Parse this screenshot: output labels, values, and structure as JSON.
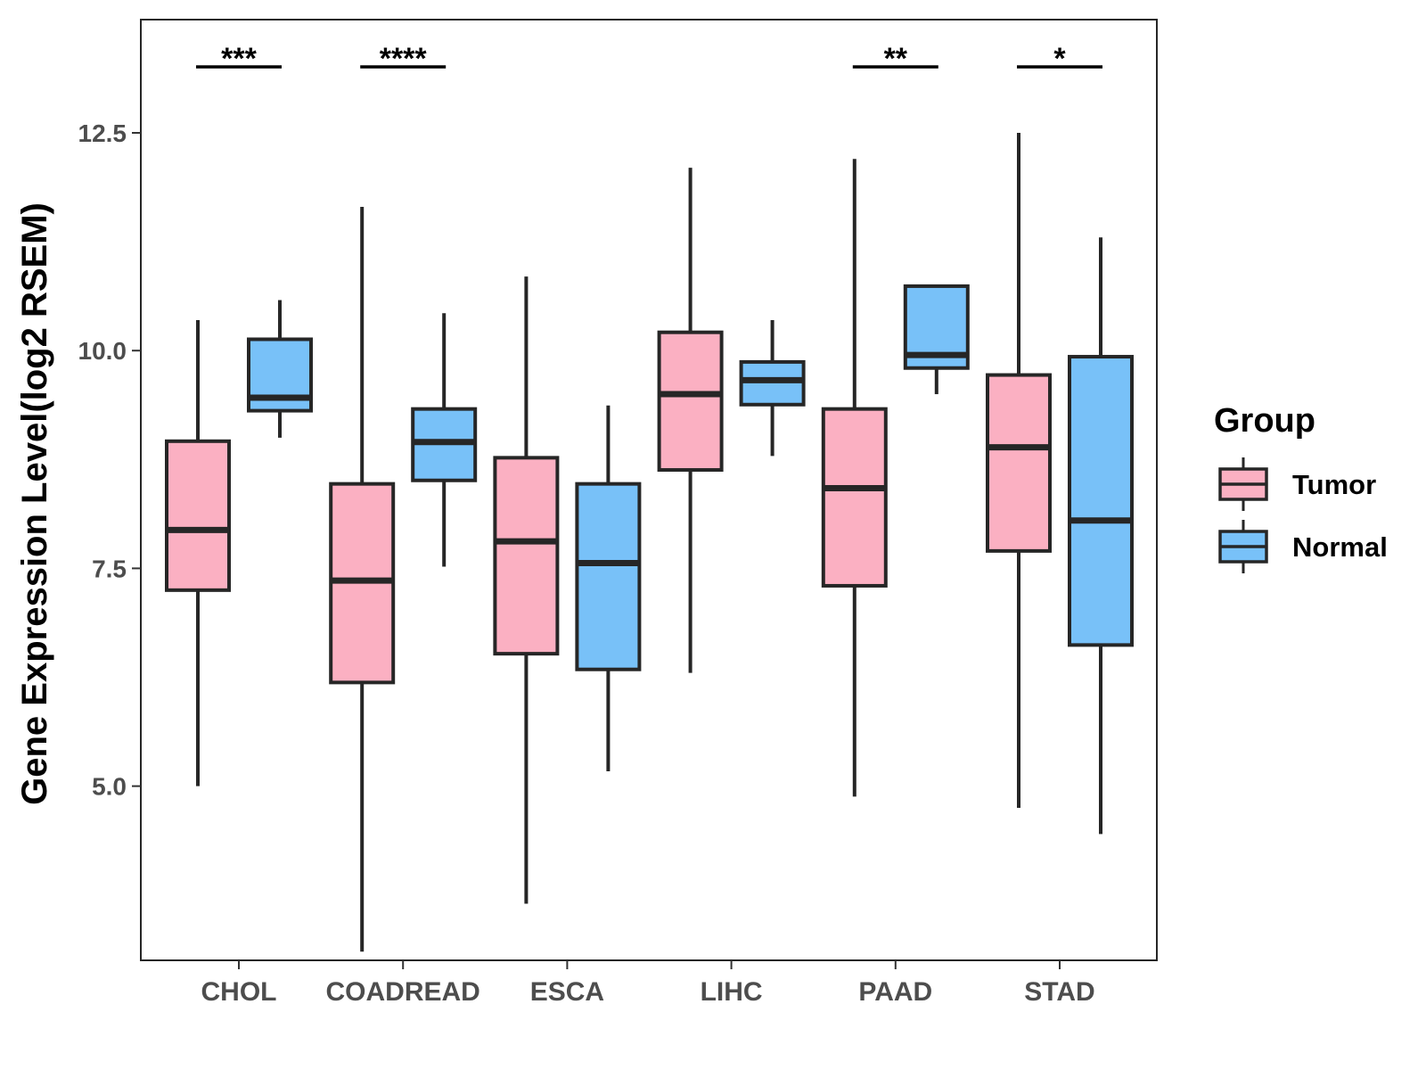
{
  "chart_data": {
    "type": "boxplot",
    "title": "",
    "xlabel": "",
    "ylabel": "Gene Expression Level(log2 RSEM)",
    "ylim": [
      3.0,
      13.8
    ],
    "yticks": [
      5.0,
      7.5,
      10.0,
      12.5
    ],
    "ytick_labels": [
      "5.0",
      "7.5",
      "10.0",
      "12.5"
    ],
    "categories": [
      "CHOL",
      "COADREAD",
      "ESCA",
      "LIHC",
      "PAAD",
      "STAD"
    ],
    "legend": {
      "title": "Group",
      "position": "right",
      "entries": [
        "Tumor",
        "Normal"
      ]
    },
    "colors": {
      "Tumor": "#FBB0C2",
      "Normal": "#78C1F8",
      "outline": "#262626"
    },
    "series": [
      {
        "name": "Tumor",
        "boxes": [
          {
            "min": 5.0,
            "q1": 7.25,
            "median": 7.94,
            "q3": 8.96,
            "max": 10.35
          },
          {
            "min": 3.1,
            "q1": 6.19,
            "median": 7.36,
            "q3": 8.47,
            "max": 11.65
          },
          {
            "min": 3.65,
            "q1": 6.52,
            "median": 7.81,
            "q3": 8.77,
            "max": 10.85
          },
          {
            "min": 6.3,
            "q1": 8.63,
            "median": 9.5,
            "q3": 10.21,
            "max": 12.1
          },
          {
            "min": 4.88,
            "q1": 7.3,
            "median": 8.42,
            "q3": 9.33,
            "max": 12.2
          },
          {
            "min": 4.75,
            "q1": 7.7,
            "median": 8.89,
            "q3": 9.72,
            "max": 12.5
          }
        ]
      },
      {
        "name": "Normal",
        "boxes": [
          {
            "min": 9.0,
            "q1": 9.31,
            "median": 9.46,
            "q3": 10.13,
            "max": 10.58
          },
          {
            "min": 7.52,
            "q1": 8.51,
            "median": 8.95,
            "q3": 9.33,
            "max": 10.43
          },
          {
            "min": 5.17,
            "q1": 6.34,
            "median": 7.56,
            "q3": 8.47,
            "max": 9.37
          },
          {
            "min": 8.79,
            "q1": 9.38,
            "median": 9.66,
            "q3": 9.87,
            "max": 10.35
          },
          {
            "min": 9.5,
            "q1": 9.8,
            "median": 9.95,
            "q3": 10.74,
            "max": 10.74
          },
          {
            "min": 4.45,
            "q1": 6.62,
            "median": 8.05,
            "q3": 9.93,
            "max": 11.3
          }
        ]
      }
    ],
    "significance": [
      {
        "category": "CHOL",
        "label": "***"
      },
      {
        "category": "COADREAD",
        "label": "****"
      },
      {
        "category": "PAAD",
        "label": "**"
      },
      {
        "category": "STAD",
        "label": "*"
      }
    ]
  }
}
